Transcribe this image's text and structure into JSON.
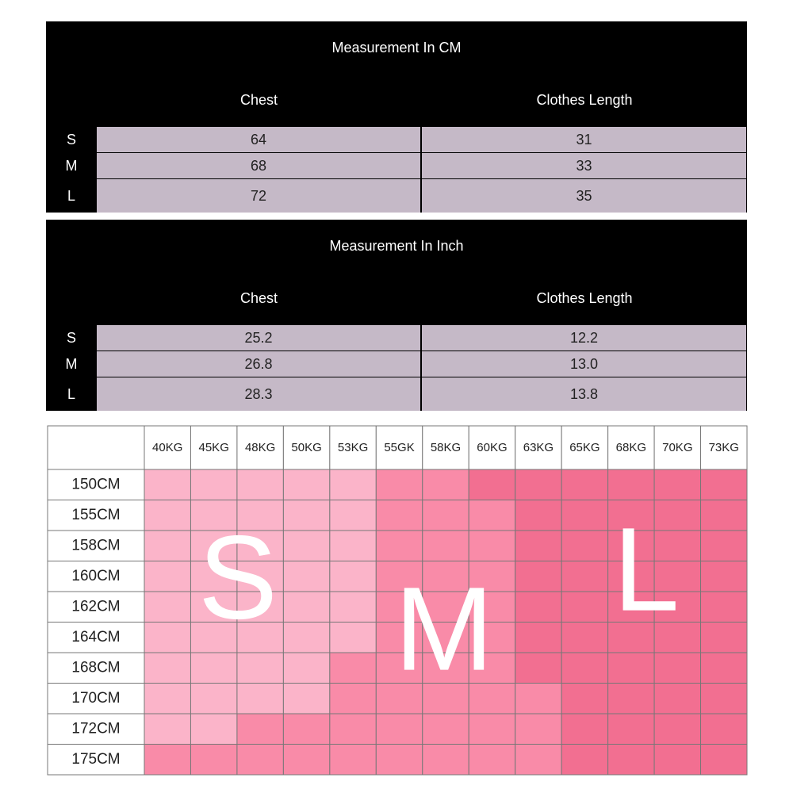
{
  "tables": [
    {
      "title": "Measurement In CM",
      "columns": [
        "Chest",
        "Clothes Length"
      ],
      "rows": [
        {
          "size": "S",
          "values": [
            "64",
            "31"
          ]
        },
        {
          "size": "M",
          "values": [
            "68",
            "33"
          ]
        },
        {
          "size": "L",
          "values": [
            "72",
            "35"
          ]
        }
      ]
    },
    {
      "title": "Measurement In Inch",
      "columns": [
        "Chest",
        "Clothes Length"
      ],
      "rows": [
        {
          "size": "S",
          "values": [
            "25.2",
            "12.2"
          ]
        },
        {
          "size": "M",
          "values": [
            "26.8",
            "13.0"
          ]
        },
        {
          "size": "L",
          "values": [
            "28.3",
            "13.8"
          ]
        }
      ]
    }
  ],
  "grid": {
    "weights": [
      "40KG",
      "45KG",
      "48KG",
      "50KG",
      "53KG",
      "55GK",
      "58KG",
      "60KG",
      "63KG",
      "65KG",
      "68KG",
      "70KG",
      "73KG"
    ],
    "heights": [
      "150CM",
      "155CM",
      "158CM",
      "160CM",
      "162CM",
      "164CM",
      "168CM",
      "170CM",
      "172CM",
      "175CM"
    ],
    "regions": [
      "S",
      "M",
      "L"
    ],
    "colors": {
      "S": "#fbb4c9",
      "M": "#f98ba8",
      "L": "#f26f91"
    }
  }
}
